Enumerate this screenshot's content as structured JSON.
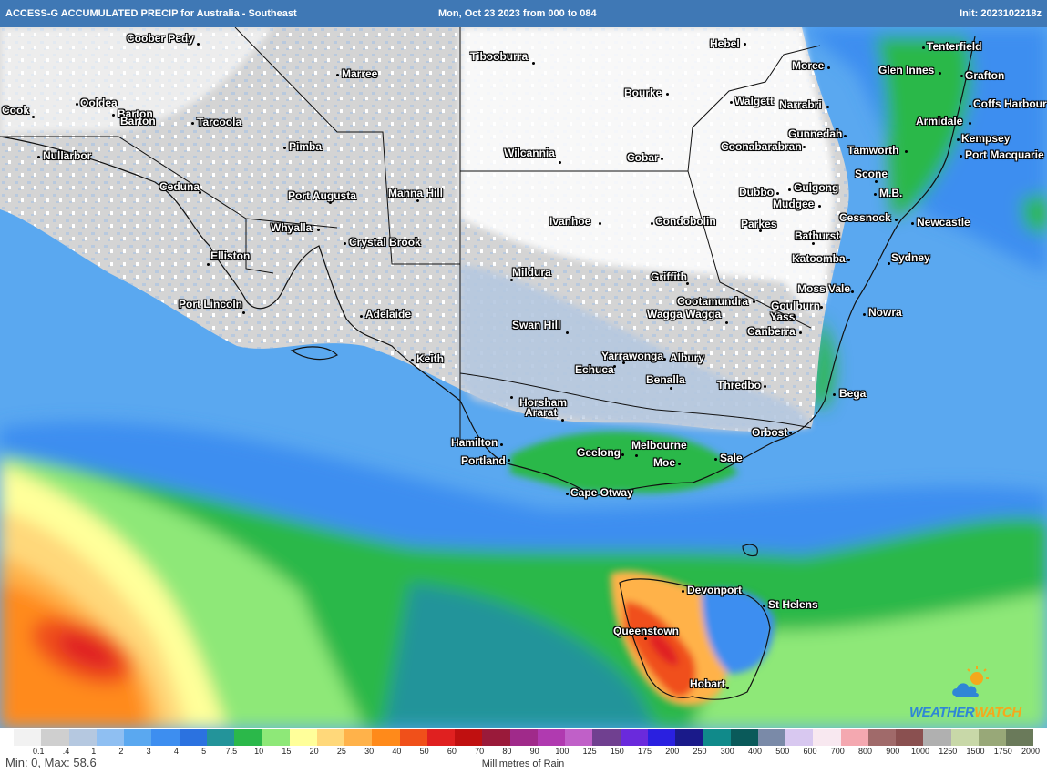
{
  "header": {
    "left_title": "ACCESS-G ACCUMULATED PRECIP for Australia - Southeast",
    "center_title": "Mon, Oct 23 2023 from 000 to 084",
    "right_title": "Init: 2023102218z"
  },
  "places": [
    "Coober Pedy",
    "Marree",
    "Tibooburra",
    "Hebel",
    "Tenterfield",
    "Moree",
    "Glen Innes",
    "Grafton",
    "Bourke",
    "Walgett",
    "Narrabri",
    "Coffs Harbour",
    "Cook",
    "Ooldea",
    "Barton",
    "Barton",
    "Tarcoola",
    "Armidale",
    "Kempsey",
    "Gunnedah",
    "Pimba",
    "Nullarbor",
    "Wilcannia",
    "Cobar",
    "Coonabarabran",
    "Tamworth",
    "Port Macquarie",
    "Ceduna",
    "Manna Hill",
    "Port Augusta",
    "Scone",
    "Dubbo",
    "Gulgong",
    "M.B.",
    "Mudgee",
    "Whyalla",
    "Ivanhoe",
    "Condobolin",
    "Parkes",
    "Cessnock",
    "Newcastle",
    "Crystal Brook",
    "Bathurst",
    "Elliston",
    "Katoomba",
    "Sydney",
    "Mildura",
    "Griffith",
    "Port Lincoln",
    "Moss Vale",
    "Cootamundra",
    "Goulburn",
    "Adelaide",
    "Yass",
    "Wagga Wagga",
    "Nowra",
    "Swan Hill",
    "Canberra",
    "Yarrawonga",
    "Albury",
    "Keith",
    "Echuca",
    "Benalla",
    "Thredbo",
    "Bega",
    "Horsham",
    "Ararat",
    "Orbost",
    "Hamilton",
    "Melbourne",
    "Geelong",
    "Sale",
    "Portland",
    "Moe",
    "Cape Otway",
    "Devonport",
    "St Helens",
    "Queenstown",
    "Hobart"
  ],
  "legend": {
    "title": "Millimetres of Rain",
    "min_max": "Min: 0, Max: 58.6",
    "levels": [
      "0.1",
      "0.4",
      "1",
      "2",
      "3",
      "4",
      "5",
      "7.5",
      "10",
      "15",
      "20",
      "25",
      "30",
      "40",
      "50",
      "60",
      "70",
      "80",
      "90",
      "100",
      "125",
      "150",
      "175",
      "200",
      "250",
      "300",
      "400",
      "500",
      "600",
      "700",
      "800",
      "900",
      "1000",
      "1250",
      "1500",
      "1750",
      "2000"
    ],
    "tick_labels": [
      "0.1",
      ".4",
      "1",
      "2",
      "3",
      "4",
      "5",
      "7.5",
      "10",
      "15",
      "20",
      "25",
      "30",
      "40",
      "50",
      "60",
      "70",
      "80",
      "90",
      "100",
      "125",
      "150",
      "175",
      "200",
      "250",
      "300",
      "400",
      "500",
      "600",
      "700",
      "800",
      "900",
      "1000",
      "1250",
      "1500",
      "1750",
      "2000"
    ],
    "colors": [
      "#f2f2f2",
      "#cfcfcf",
      "#b5c8e0",
      "#8fbff2",
      "#5aa8f0",
      "#3d8ef0",
      "#2b72e0",
      "#23949a",
      "#2bb84a",
      "#8ee878",
      "#ffff9a",
      "#ffd87a",
      "#ffb24a",
      "#ff8a1a",
      "#f0501a",
      "#e02020",
      "#c01010",
      "#9a1a3a",
      "#a02a8a",
      "#b03ab0",
      "#c060c8",
      "#704090",
      "#6a2adc",
      "#2a20e0",
      "#1a1a8a",
      "#108a8a",
      "#0a5a5a",
      "#7a8aa8",
      "#d8c8f0",
      "#f8e8f0",
      "#f4a8b0",
      "#a06a6a",
      "#8a5050",
      "#b0b0b0",
      "#c8d8a8",
      "#98a878",
      "#6a7a5a"
    ]
  },
  "logo": {
    "brand_a": "WEATHER",
    "brand_b": "WATCH",
    "icon": "weather-cloud-sun-icon"
  }
}
